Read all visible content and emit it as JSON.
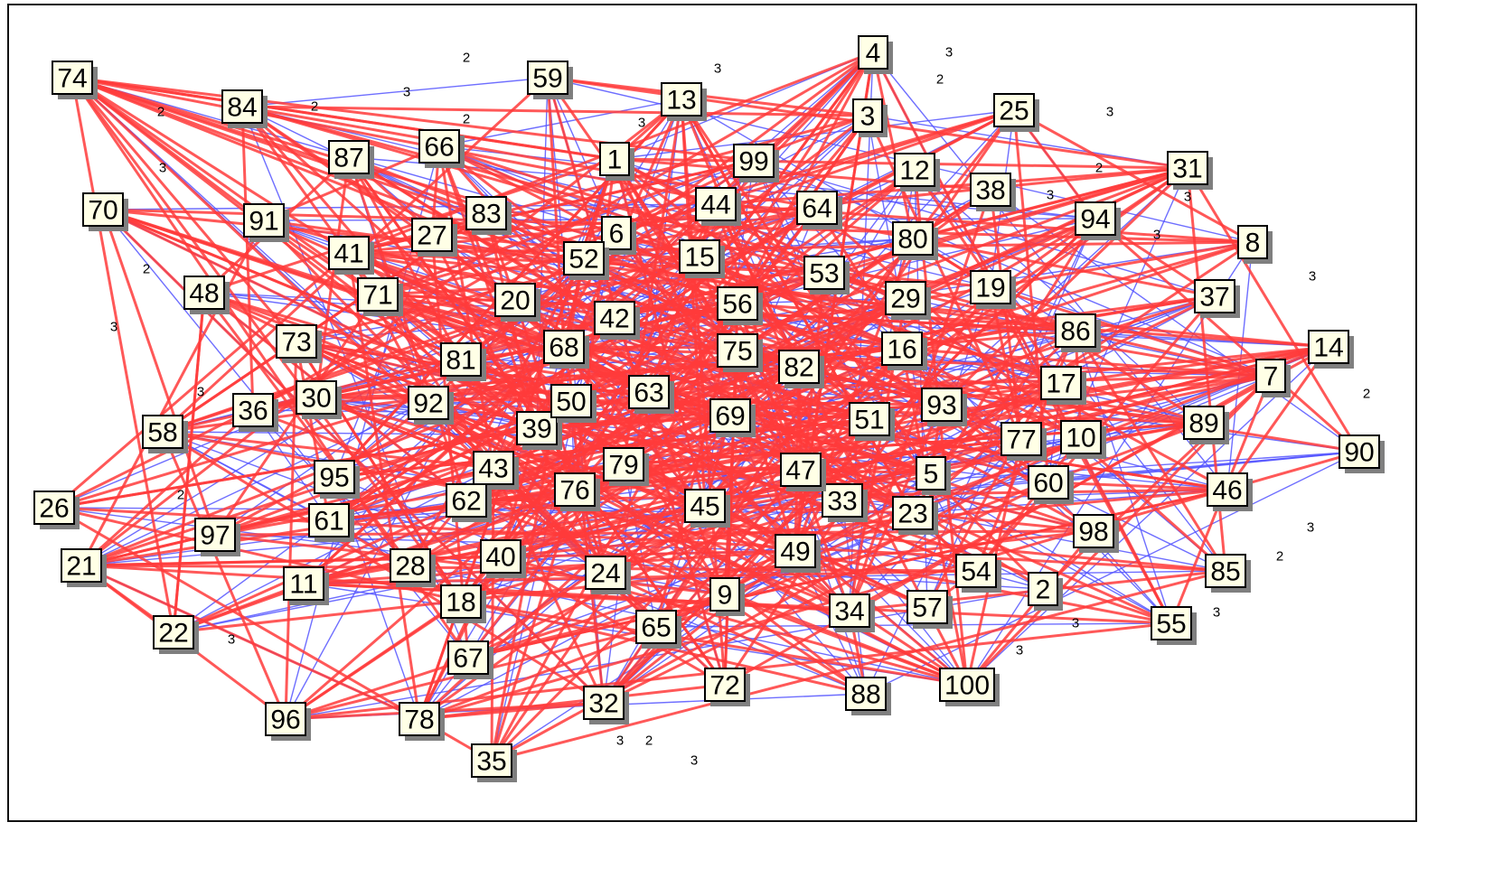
{
  "graph": {
    "colors": {
      "blue_edge": "#5555ff",
      "red_edge": "#ff3b3b",
      "node_fill": "#ffffe6"
    },
    "nodes": [
      "1",
      "2",
      "3",
      "4",
      "5",
      "6",
      "7",
      "8",
      "9",
      "10",
      "11",
      "12",
      "13",
      "14",
      "15",
      "16",
      "17",
      "18",
      "19",
      "20",
      "21",
      "22",
      "23",
      "24",
      "25",
      "26",
      "27",
      "28",
      "29",
      "30",
      "31",
      "32",
      "33",
      "34",
      "35",
      "36",
      "37",
      "38",
      "39",
      "40",
      "41",
      "42",
      "43",
      "44",
      "45",
      "46",
      "47",
      "48",
      "49",
      "50",
      "51",
      "52",
      "53",
      "54",
      "55",
      "56",
      "57",
      "58",
      "59",
      "60",
      "61",
      "62",
      "63",
      "64",
      "65",
      "66",
      "67",
      "68",
      "69",
      "70",
      "71",
      "72",
      "73",
      "74",
      "75",
      "76",
      "77",
      "78",
      "79",
      "80",
      "81",
      "82",
      "83",
      "84",
      "85",
      "86",
      "87",
      "88",
      "89",
      "90",
      "91",
      "92",
      "93",
      "94",
      "95",
      "96",
      "97",
      "98",
      "99",
      "100"
    ],
    "edge_weight_labels": [
      "2",
      "3",
      "3",
      "2",
      "3",
      "2",
      "3",
      "2",
      "2",
      "3",
      "3",
      "2",
      "3",
      "3",
      "2",
      "3",
      "2",
      "3",
      "3",
      "3",
      "3",
      "3",
      "2",
      "3",
      "2",
      "3",
      "3",
      "3",
      "2",
      "3"
    ]
  }
}
